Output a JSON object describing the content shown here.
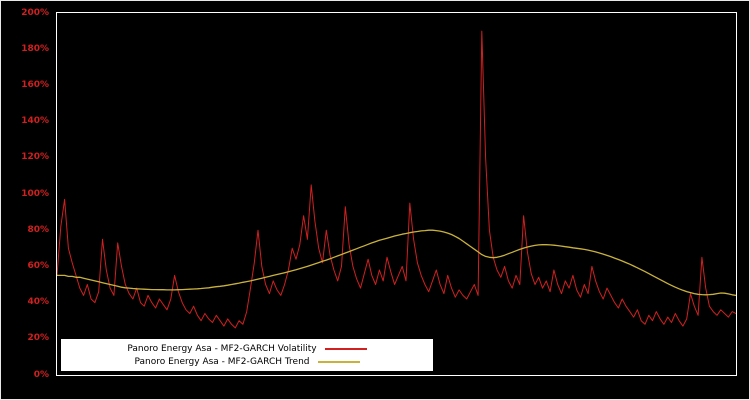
{
  "chart_data": {
    "type": "line",
    "title": "",
    "xlabel": "",
    "ylabel": "",
    "ylim": [
      0,
      200
    ],
    "grid": false,
    "legend_position": "bottom-left",
    "background_color": "#000000",
    "frame_color": "#ffffff",
    "tick_label_color": "#d02020",
    "y_tick_labels": [
      "0%",
      "20%",
      "40%",
      "60%",
      "80%",
      "100%",
      "120%",
      "140%",
      "160%",
      "180%",
      "200%"
    ],
    "series": [
      {
        "name": "Panoro Energy Asa - MF2-GARCH Volatility",
        "color": "#d02020",
        "values": [
          55,
          82,
          97,
          70,
          62,
          55,
          48,
          44,
          50,
          42,
          40,
          46,
          75,
          58,
          48,
          44,
          73,
          60,
          50,
          45,
          42,
          48,
          40,
          38,
          44,
          40,
          37,
          42,
          39,
          36,
          42,
          55,
          46,
          40,
          36,
          34,
          38,
          33,
          30,
          34,
          31,
          29,
          33,
          30,
          27,
          31,
          28,
          26,
          30,
          28,
          35,
          48,
          62,
          80,
          60,
          50,
          45,
          52,
          47,
          44,
          50,
          58,
          70,
          64,
          72,
          88,
          75,
          105,
          85,
          70,
          62,
          80,
          66,
          58,
          52,
          60,
          93,
          72,
          60,
          53,
          48,
          56,
          64,
          55,
          50,
          58,
          52,
          65,
          57,
          50,
          55,
          60,
          52,
          95,
          75,
          62,
          55,
          50,
          46,
          52,
          58,
          50,
          45,
          55,
          48,
          43,
          47,
          44,
          42,
          46,
          50,
          44,
          190,
          120,
          80,
          65,
          58,
          54,
          60,
          52,
          48,
          55,
          50,
          88,
          68,
          56,
          50,
          54,
          48,
          52,
          46,
          58,
          50,
          45,
          52,
          48,
          55,
          47,
          43,
          50,
          45,
          60,
          52,
          46,
          42,
          48,
          44,
          40,
          37,
          42,
          38,
          35,
          32,
          36,
          30,
          28,
          33,
          30,
          35,
          31,
          28,
          32,
          29,
          34,
          30,
          27,
          31,
          45,
          38,
          33,
          65,
          48,
          38,
          35,
          33,
          36,
          34,
          32,
          35,
          34
        ]
      },
      {
        "name": "Panoro Energy Asa - MF2-GARCH Trend",
        "color": "#c9b23c",
        "values": [
          55,
          55,
          55,
          54.5,
          54.5,
          54,
          54,
          53.5,
          53,
          52.5,
          52,
          51.5,
          51,
          50.5,
          50,
          49.5,
          49,
          48.5,
          48.2,
          48,
          47.8,
          47.6,
          47.5,
          47.4,
          47.3,
          47.2,
          47.2,
          47.1,
          47.1,
          47,
          47,
          47,
          47.1,
          47.2,
          47.3,
          47.4,
          47.5,
          47.6,
          47.8,
          48,
          48.2,
          48.5,
          48.8,
          49,
          49.3,
          49.6,
          50,
          50.4,
          50.8,
          51.2,
          51.6,
          52,
          52.5,
          53,
          53.5,
          54,
          54.5,
          55,
          55.5,
          56,
          56.5,
          57,
          57.6,
          58.2,
          58.8,
          59.4,
          60,
          60.7,
          61.4,
          62.1,
          62.8,
          63.5,
          64.2,
          65,
          65.8,
          66.6,
          67.4,
          68.2,
          69,
          69.8,
          70.6,
          71.4,
          72.2,
          73,
          73.7,
          74.4,
          75,
          75.6,
          76.2,
          76.8,
          77.3,
          77.8,
          78.2,
          78.6,
          79,
          79.3,
          79.6,
          79.8,
          80,
          80,
          79.8,
          79.5,
          79,
          78.4,
          77.6,
          76.6,
          75.4,
          74,
          72.5,
          71,
          69.5,
          68,
          66.5,
          65.5,
          65,
          64.8,
          65,
          65.5,
          66.2,
          67,
          67.8,
          68.6,
          69.4,
          70.1,
          70.7,
          71.2,
          71.6,
          71.9,
          72,
          72,
          71.9,
          71.7,
          71.5,
          71.2,
          70.9,
          70.6,
          70.3,
          70,
          69.7,
          69.4,
          69,
          68.5,
          68,
          67.4,
          66.8,
          66.1,
          65.4,
          64.6,
          63.8,
          63,
          62.1,
          61.2,
          60.2,
          59.2,
          58.2,
          57.1,
          56,
          54.9,
          53.8,
          52.7,
          51.6,
          50.5,
          49.5,
          48.5,
          47.6,
          46.8,
          46.1,
          45.5,
          45,
          44.6,
          44.4,
          44.3,
          44.4,
          44.6,
          45,
          45.3,
          45.2,
          44.8,
          44.3,
          44
        ]
      }
    ]
  }
}
